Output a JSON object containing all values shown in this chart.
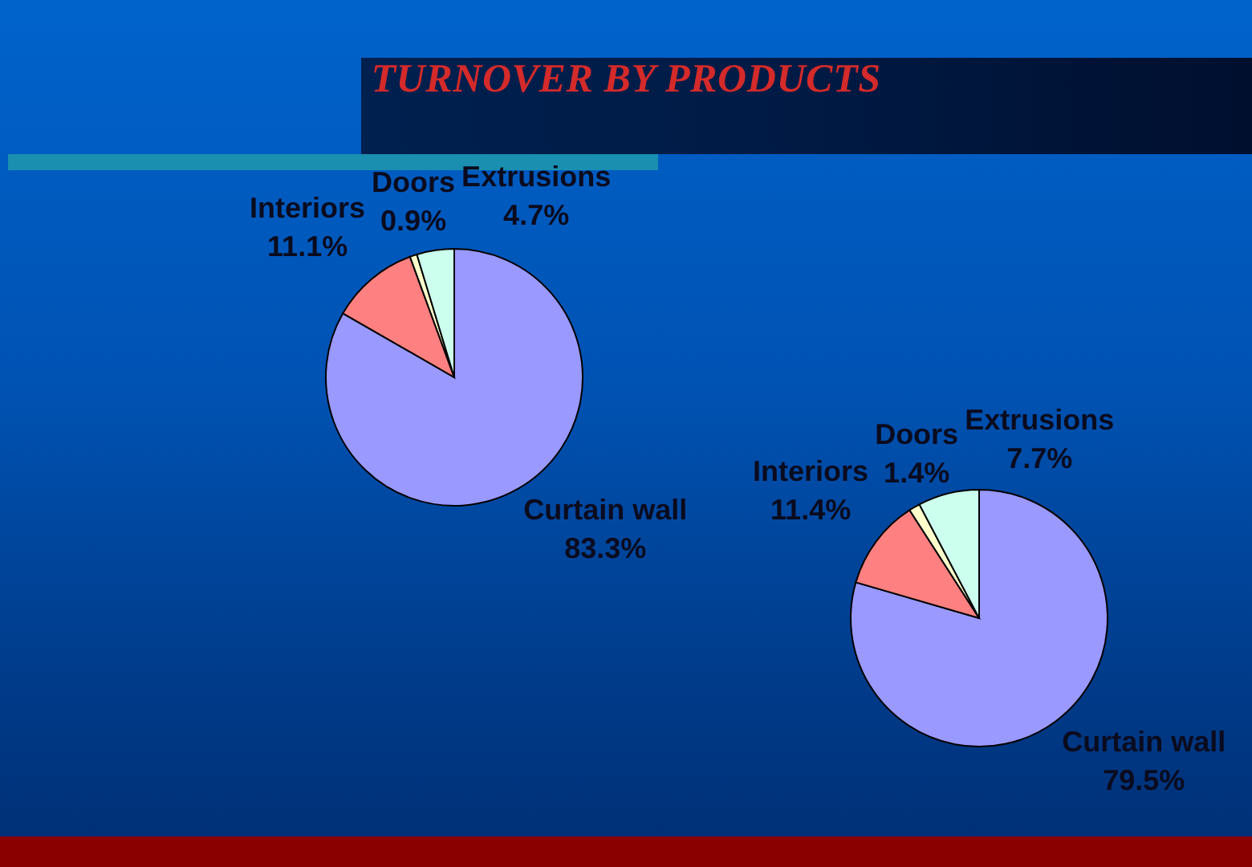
{
  "chart_data": [
    {
      "type": "pie",
      "title": "TURNOVER BY PRODUCTS",
      "categories": [
        "Curtain wall",
        "Interiors",
        "Doors",
        "Extrusions"
      ],
      "values": [
        83.3,
        11.1,
        0.9,
        4.7
      ],
      "value_labels": [
        "83.3%",
        "11.1%",
        "0.9%",
        "4.7%"
      ],
      "colors": [
        "#9999ff",
        "#ff8080",
        "#ffffcc",
        "#ccffee"
      ]
    },
    {
      "type": "pie",
      "categories": [
        "Curtain wall",
        "Interiors",
        "Doors",
        "Extrusions"
      ],
      "values": [
        79.5,
        11.4,
        1.4,
        7.7
      ],
      "value_labels": [
        "79.5%",
        "11.4%",
        "1.4%",
        "7.7%"
      ],
      "colors": [
        "#9999ff",
        "#ff8080",
        "#ffffcc",
        "#ccffee"
      ]
    }
  ]
}
